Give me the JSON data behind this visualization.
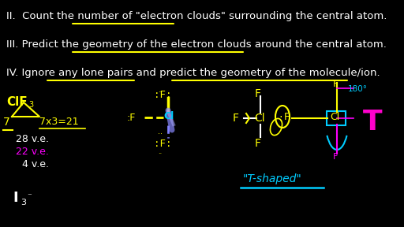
{
  "bg_color": "#000000",
  "white_color": "#FFFFFF",
  "yellow_color": "#FFFF00",
  "cyan_color": "#00CCFF",
  "magenta_color": "#FF00FF",
  "pink_color": "#FF00CC",
  "line1": "II.  Count the number of \"electron clouds\" surrounding the central atom.",
  "line2": "III. Predict the geometry of the electron clouds around the central atom.",
  "line3": "IV. Ignore any lone pairs and predict the geometry of the molecule/ion."
}
